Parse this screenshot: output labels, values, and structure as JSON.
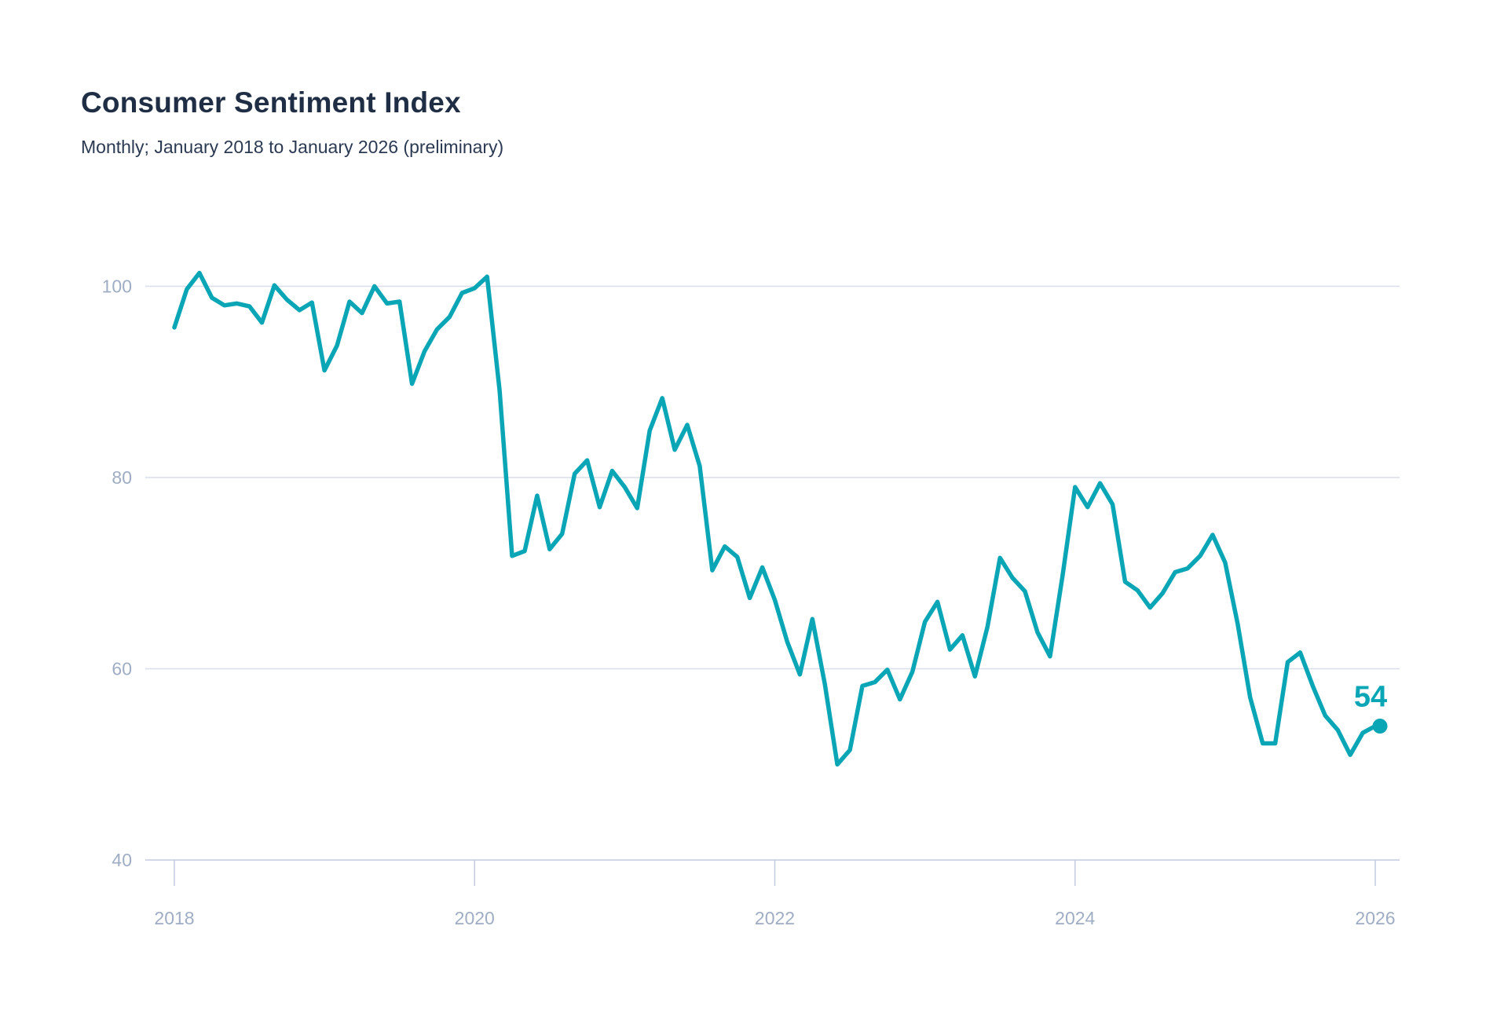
{
  "header": {
    "title": "Consumer Sentiment Index",
    "subtitle": "Monthly; January 2018 to January 2026 (preliminary)"
  },
  "chart_data": {
    "type": "line",
    "title": "Consumer Sentiment Index",
    "subtitle": "Monthly; January 2018 to January 2026 (preliminary)",
    "x_start": "2018-01",
    "x_end": "2026-01",
    "frequency": "monthly",
    "series": [
      {
        "name": "Consumer Sentiment Index",
        "values": [
          95.7,
          99.7,
          101.4,
          98.8,
          98.0,
          98.2,
          97.9,
          96.2,
          100.1,
          98.6,
          97.5,
          98.3,
          91.2,
          93.8,
          98.4,
          97.2,
          100.0,
          98.2,
          98.4,
          89.8,
          93.2,
          95.5,
          96.8,
          99.3,
          99.8,
          101.0,
          89.1,
          71.8,
          72.3,
          78.1,
          72.5,
          74.1,
          80.4,
          81.8,
          76.9,
          80.7,
          79.0,
          76.8,
          84.9,
          88.3,
          82.9,
          85.5,
          81.2,
          70.3,
          72.8,
          71.7,
          67.4,
          70.6,
          67.2,
          62.8,
          59.4,
          65.2,
          58.4,
          50.0,
          51.5,
          58.2,
          58.6,
          59.9,
          56.8,
          59.7,
          64.9,
          67.0,
          62.0,
          63.5,
          59.2,
          64.4,
          71.6,
          69.5,
          68.1,
          63.8,
          61.3,
          69.7,
          79.0,
          76.9,
          79.4,
          77.2,
          69.1,
          68.2,
          66.4,
          67.9,
          70.1,
          70.5,
          71.8,
          74.0,
          71.1,
          64.7,
          57.0,
          52.2,
          52.2,
          60.7,
          61.7,
          58.2,
          55.1,
          53.6,
          51.0,
          53.3,
          54.0
        ]
      }
    ],
    "x_tick_labels": [
      "2018",
      "2020",
      "2022",
      "2024",
      "2026"
    ],
    "x_tick_month_indices": [
      0,
      24,
      48,
      72,
      96
    ],
    "y_ticks": [
      100,
      80,
      60,
      40
    ],
    "ylim": [
      40,
      103.5
    ],
    "grid": "horizontal",
    "legend": "none",
    "end_label": "54",
    "end_value": 54,
    "colors": {
      "line": "#0aa6b6",
      "end_dot": "#0aa6b6",
      "end_label": "#0aa6b6",
      "axis_text": "#9fadc4",
      "grid_line": "#d9deea",
      "axis_line": "#c3cbdf"
    }
  }
}
